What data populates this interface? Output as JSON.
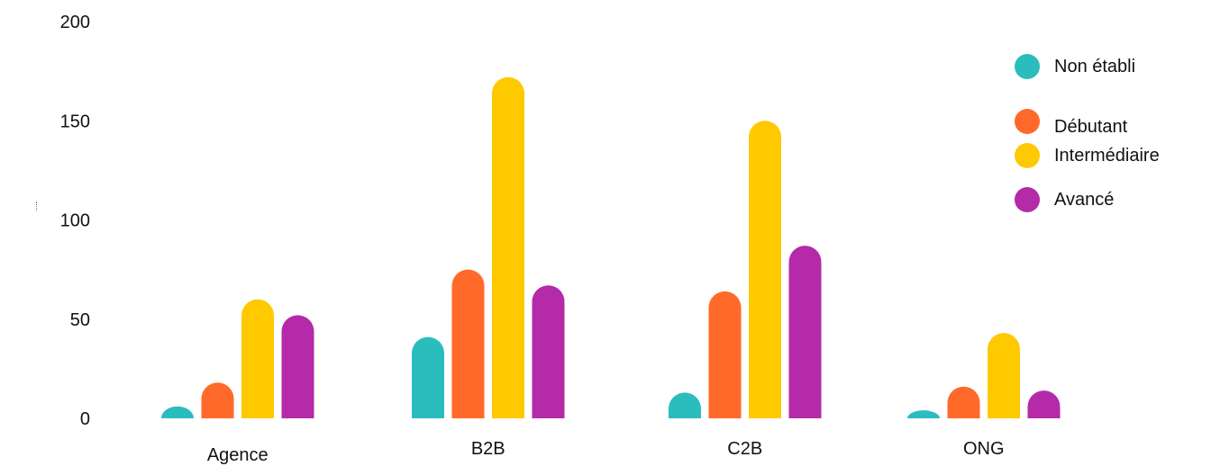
{
  "chart_data": {
    "type": "bar",
    "categories": [
      "Agence",
      "B2B",
      "C2B",
      "ONG"
    ],
    "series": [
      {
        "name": "Non établi",
        "color": "#2BBCBE",
        "values": [
          6,
          41,
          13,
          4
        ]
      },
      {
        "name": "Débutant",
        "color": "#FF6A2B",
        "values": [
          18,
          75,
          64,
          16
        ]
      },
      {
        "name": "Intermédiaire",
        "color": "#FFC900",
        "values": [
          60,
          172,
          150,
          43
        ]
      },
      {
        "name": "Avancé",
        "color": "#B42AA8",
        "values": [
          52,
          67,
          87,
          14
        ]
      }
    ],
    "yticks": [
      "0",
      "50",
      "100",
      "150",
      "200"
    ],
    "ylim": [
      0,
      200
    ],
    "grid": false,
    "legend_position": "top-right",
    "title": "",
    "xlabel": "",
    "ylabel": ""
  }
}
